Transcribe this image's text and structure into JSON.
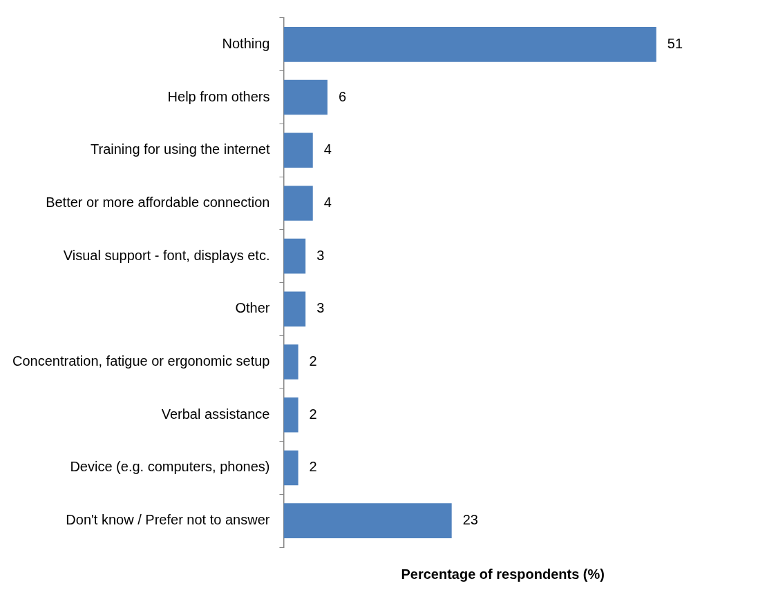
{
  "chart_data": {
    "type": "bar",
    "orientation": "horizontal",
    "categories": [
      "Nothing",
      "Help from others",
      "Training for using the internet",
      "Better or more affordable connection",
      "Visual support - font, displays etc.",
      "Other",
      "Concentration, fatigue or ergonomic setup",
      "Verbal assistance",
      "Device (e.g. computers, phones)",
      "Don't know / Prefer not to answer"
    ],
    "values": [
      51,
      6,
      4,
      4,
      3,
      3,
      2,
      2,
      2,
      23
    ],
    "color": "#4f81bd",
    "xlabel": "Percentage of respondents (%)",
    "data_labels": true,
    "grid": false,
    "legend": false
  }
}
